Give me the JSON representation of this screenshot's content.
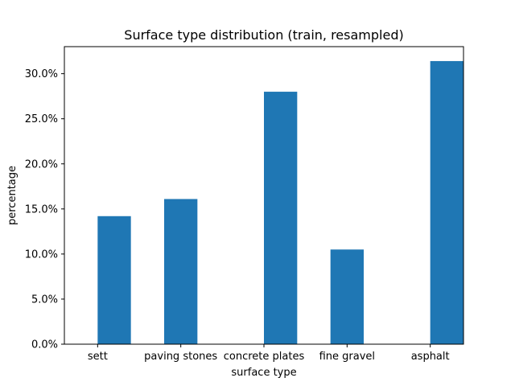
{
  "chart_data": {
    "type": "bar",
    "title": "Surface type distribution (train, resampled)",
    "xlabel": "surface type",
    "ylabel": "percentage",
    "categories": [
      "sett",
      "paving stones",
      "concrete plates",
      "fine gravel",
      "asphalt"
    ],
    "bars": [
      {
        "x": 0.0,
        "value": 14.2
      },
      {
        "x": 0.8,
        "value": 16.1
      },
      {
        "x": 2.0,
        "value": 28.0
      },
      {
        "x": 2.8,
        "value": 10.5
      },
      {
        "x": 4.0,
        "value": 31.4
      }
    ],
    "category_positions": [
      0.0,
      1.0,
      2.0,
      3.0,
      4.0
    ],
    "xlim": [
      -0.4,
      4.4
    ],
    "ylim": [
      0,
      33
    ],
    "yticks": [
      0,
      5,
      10,
      15,
      20,
      25,
      30
    ],
    "ytick_labels": [
      "0.0%",
      "5.0%",
      "10.0%",
      "15.0%",
      "20.0%",
      "25.0%",
      "30.0%"
    ],
    "bar_color": "#1f77b4",
    "grid": false,
    "legend": "none"
  }
}
